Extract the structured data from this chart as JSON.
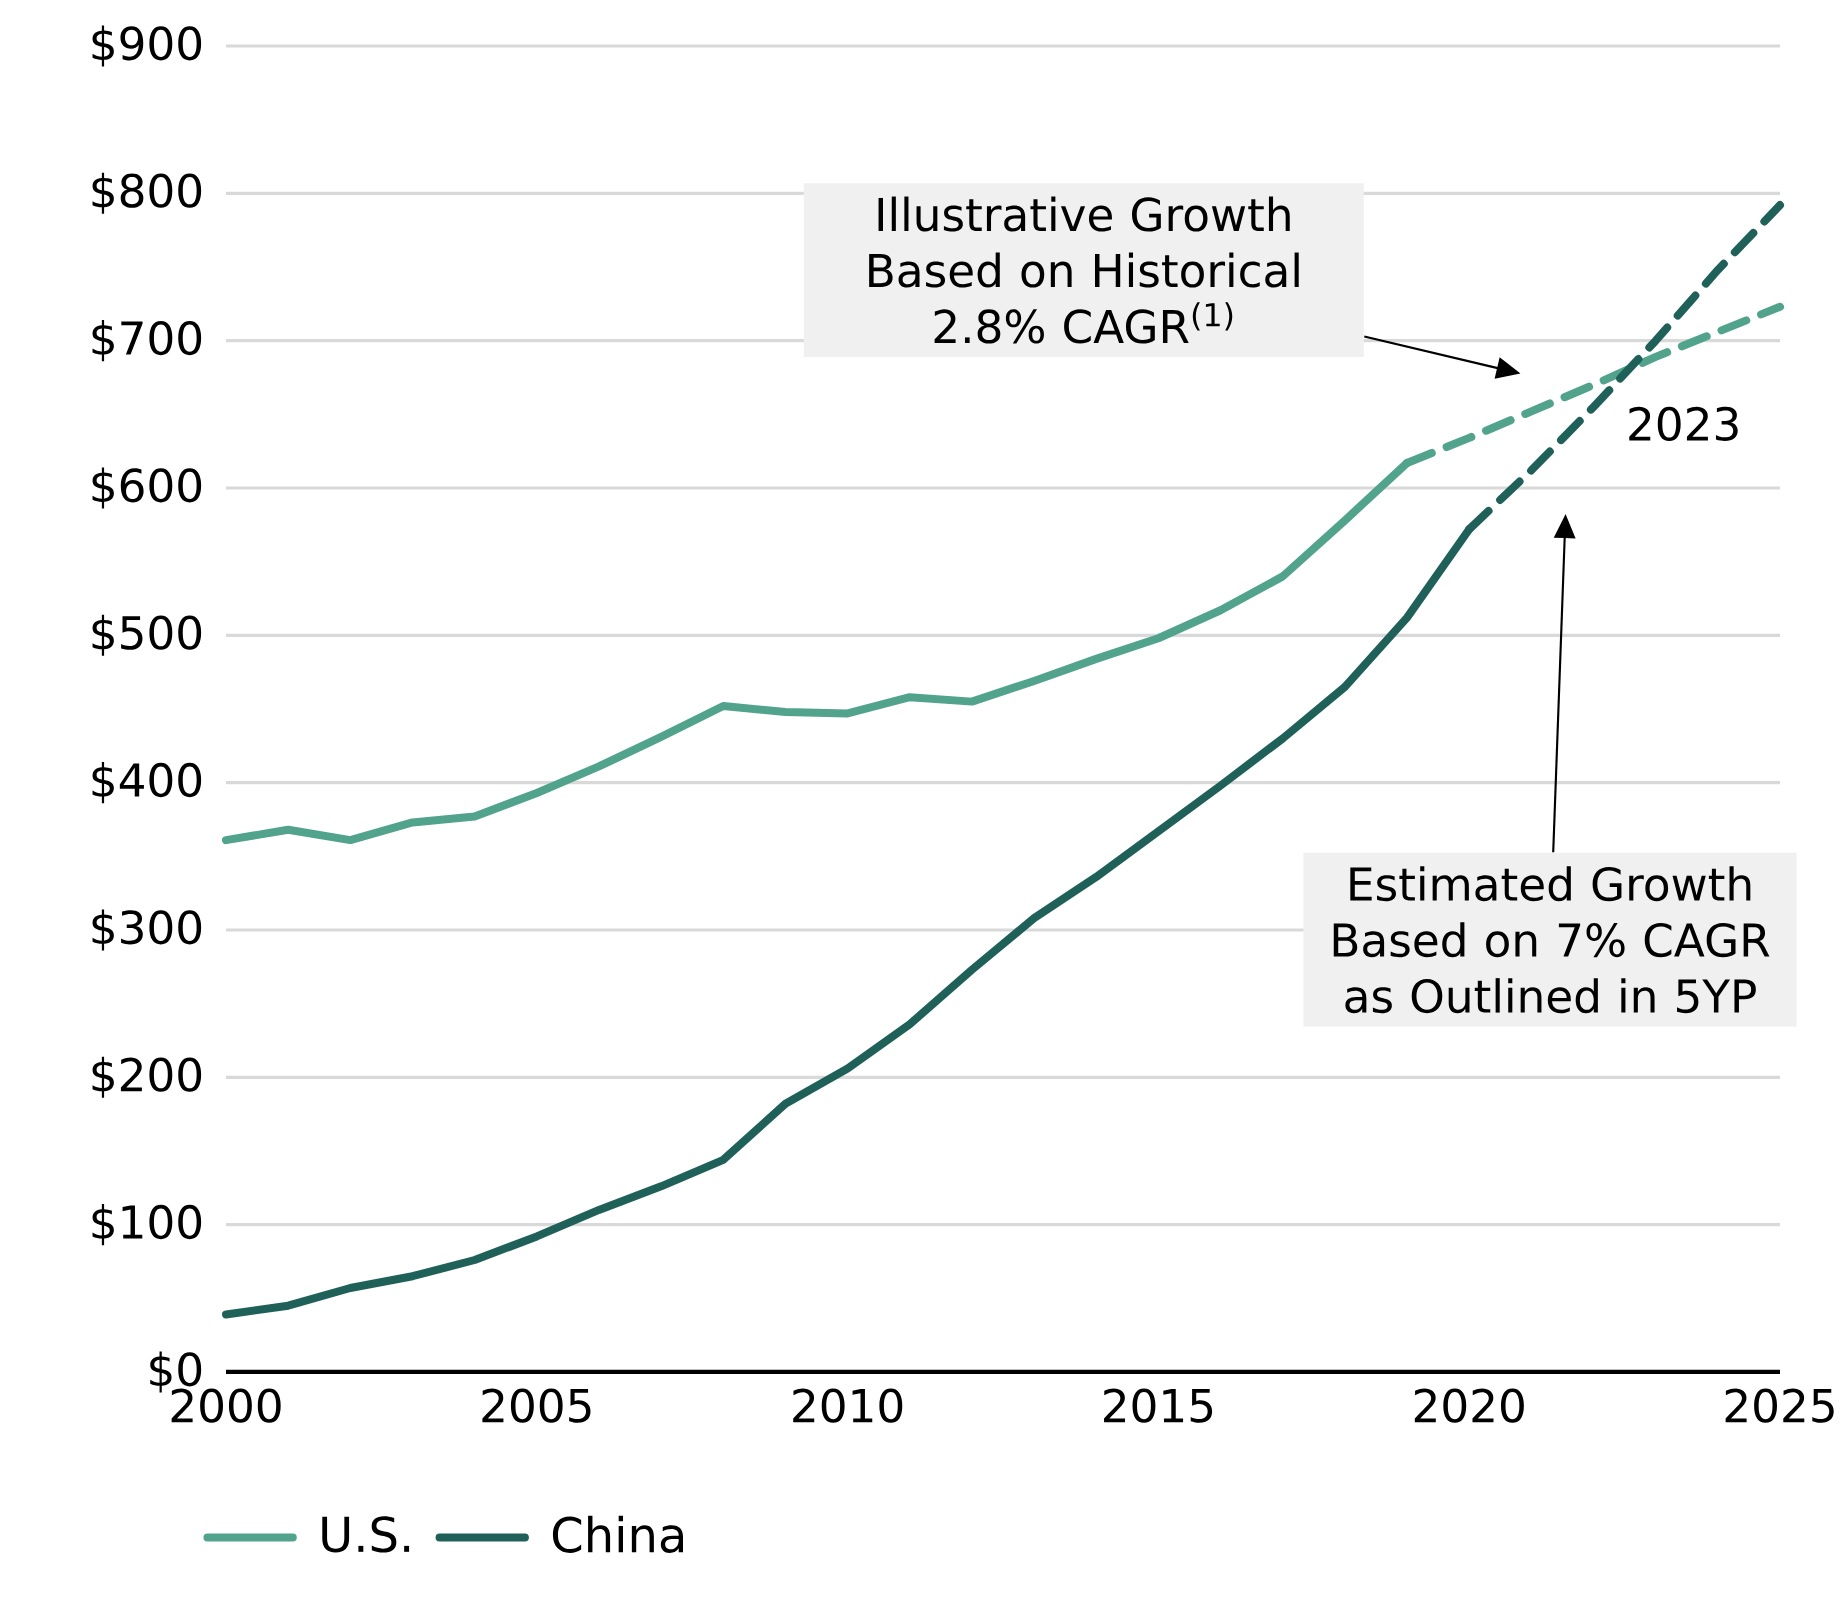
{
  "chart_data": {
    "type": "line",
    "xlim": [
      2000,
      2025
    ],
    "ylim": [
      0,
      900
    ],
    "xticks": [
      2000,
      2005,
      2010,
      2015,
      2020,
      2025
    ],
    "yticks": [
      {
        "value": 0,
        "label": "$0"
      },
      {
        "value": 100,
        "label": "$100"
      },
      {
        "value": 200,
        "label": "$200"
      },
      {
        "value": 300,
        "label": "$300"
      },
      {
        "value": 400,
        "label": "$400"
      },
      {
        "value": 500,
        "label": "$500"
      },
      {
        "value": 600,
        "label": "$600"
      },
      {
        "value": 700,
        "label": "$700"
      },
      {
        "value": 800,
        "label": "$800"
      },
      {
        "value": 900,
        "label": "$900"
      }
    ],
    "grid": "y",
    "legend": "bottom left",
    "series": [
      {
        "name": "U.S.",
        "color": "#52a38b",
        "x": [
          2000,
          2001,
          2002,
          2003,
          2004,
          2005,
          2006,
          2007,
          2008,
          2009,
          2010,
          2011,
          2012,
          2013,
          2014,
          2015,
          2016,
          2017,
          2018,
          2019
        ],
        "values": [
          361,
          368,
          361,
          373,
          377,
          393,
          411,
          431,
          452,
          448,
          447,
          458,
          455,
          469,
          484,
          498,
          517,
          540,
          578,
          617
        ]
      },
      {
        "color": "#52a38b",
        "line_style": "dashed",
        "x": [
          2019,
          2020,
          2021,
          2022,
          2023,
          2024,
          2025
        ],
        "values": [
          617,
          634,
          652,
          670,
          689,
          706,
          723
        ]
      },
      {
        "name": "China",
        "color": "#1f6159",
        "x": [
          2000,
          2001,
          2002,
          2003,
          2004,
          2005,
          2006,
          2007,
          2008,
          2009,
          2010,
          2011,
          2012,
          2013,
          2014,
          2015,
          2016,
          2017,
          2018,
          2019,
          2020
        ],
        "values": [
          39,
          45,
          57,
          65,
          76,
          92,
          110,
          126,
          144,
          182,
          206,
          236,
          273,
          308,
          336,
          367,
          398,
          430,
          465,
          512,
          572
        ]
      },
      {
        "color": "#1f6159",
        "line_style": "dashed",
        "x": [
          2020,
          2021,
          2022,
          2023,
          2024,
          2025
        ],
        "values": [
          572,
          612,
          655,
          700,
          748,
          792
        ]
      }
    ],
    "annotations": [
      "Illustrative Growth Based on Historical 2.8% CAGR$^{(1)}$",
      "2023",
      "Estimated Growth Based on 7% CAGR as Outlined in 5YP"
    ]
  }
}
